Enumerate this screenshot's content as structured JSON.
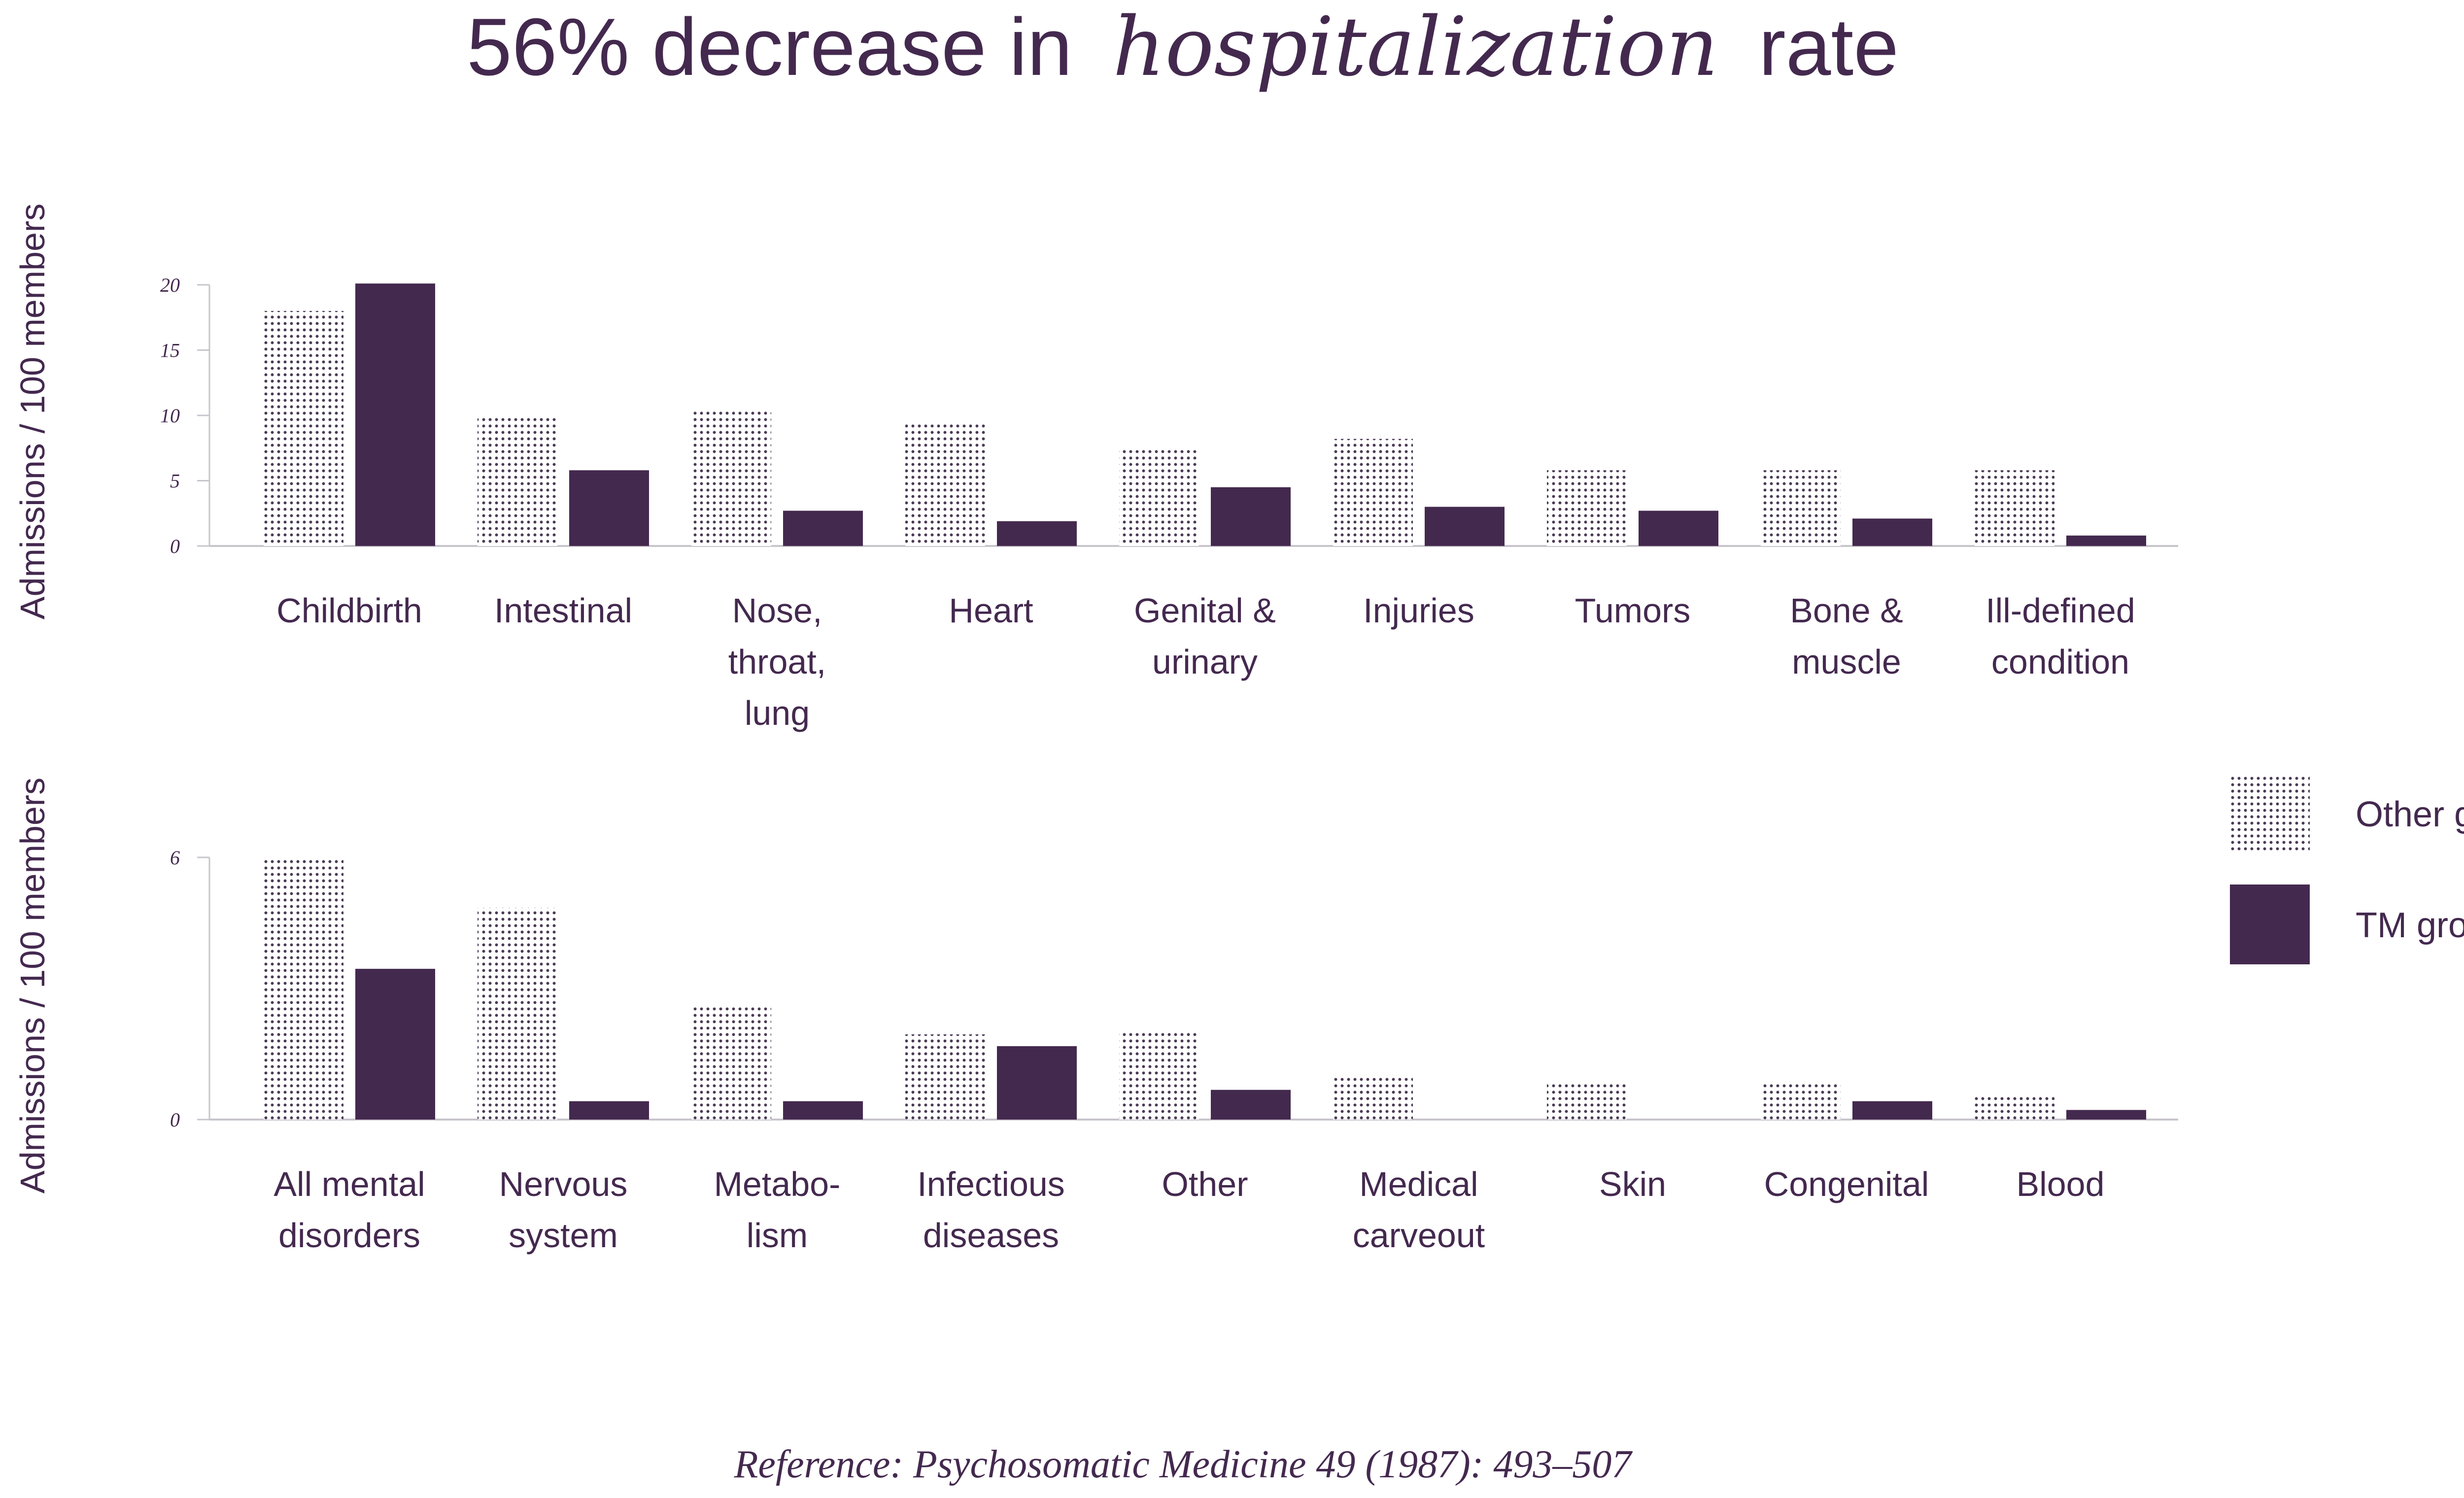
{
  "colors": {
    "text": "#44294f",
    "tm_bar": "#44294f",
    "other_dots": "#4a3a55",
    "axis": "#c8c4cc"
  },
  "title": {
    "prefix": "56% decrease in",
    "emphasis": "hospitalization",
    "suffix": "rate"
  },
  "reference": "Reference: Psychosomatic Medicine 49 (1987): 493–507",
  "legend": [
    {
      "key": "other",
      "label": "Other groups"
    },
    {
      "key": "tm",
      "label": "TM group"
    }
  ],
  "chart_data": [
    {
      "type": "bar",
      "ylabel": "Admissions / 100 members",
      "ylim": [
        0,
        20
      ],
      "yticks": [
        0,
        5,
        10,
        15,
        20
      ],
      "categories": [
        [
          "Childbirth"
        ],
        [
          "Intestinal"
        ],
        [
          "Nose,",
          "throat,",
          "lung"
        ],
        [
          "Heart"
        ],
        [
          "Genital &",
          "urinary"
        ],
        [
          "Injuries"
        ],
        [
          "Tumors"
        ],
        [
          "Bone &",
          "muscle"
        ],
        [
          "Ill-defined",
          "condition"
        ]
      ],
      "series": [
        {
          "name": "Other groups",
          "key": "other",
          "values": [
            18,
            10,
            10.5,
            9.5,
            7.5,
            8.2,
            5.8,
            5.8,
            5.8
          ]
        },
        {
          "name": "TM group",
          "key": "tm",
          "values": [
            20.1,
            5.8,
            2.7,
            1.9,
            4.5,
            3.0,
            2.7,
            2.1,
            0.8
          ]
        }
      ]
    },
    {
      "type": "bar",
      "ylabel": "Admissions / 100 members",
      "ylim": [
        0,
        6
      ],
      "yticks": [
        0,
        6
      ],
      "categories": [
        [
          "All mental",
          "disorders"
        ],
        [
          "Nervous",
          "system"
        ],
        [
          "Metabo-",
          "lism"
        ],
        [
          "Infectious",
          "diseases"
        ],
        [
          "Other"
        ],
        [
          "Medical",
          "carveout"
        ],
        [
          "Skin"
        ],
        [
          "Congenital"
        ],
        [
          "Blood"
        ]
      ],
      "series": [
        {
          "name": "Other groups",
          "key": "other",
          "values": [
            6.0,
            4.85,
            2.6,
            1.95,
            2.05,
            1.0,
            0.85,
            0.85,
            0.55
          ]
        },
        {
          "name": "TM group",
          "key": "tm",
          "values": [
            3.45,
            0.42,
            0.42,
            1.68,
            0.68,
            0,
            0,
            0.42,
            0.22
          ]
        }
      ]
    }
  ]
}
